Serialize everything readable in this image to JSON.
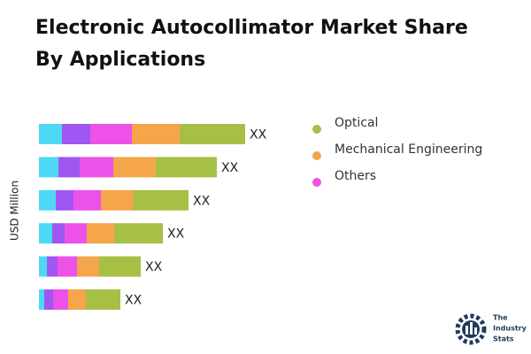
{
  "chart_data": {
    "type": "stacked-bar-horizontal",
    "title": "Electronic Autocollimator Market Share By Applications",
    "y_label": "USD Million",
    "categories": [
      null,
      null,
      null,
      null,
      null,
      null
    ],
    "series": [
      {
        "color": "#4dd9f5",
        "values": [
          26,
          22,
          19,
          15,
          9,
          6
        ]
      },
      {
        "color": "#a056f0",
        "values": [
          32,
          24,
          20,
          14,
          12,
          10
        ]
      },
      {
        "name": "Others",
        "color": "#ec52e8",
        "values": [
          47,
          38,
          31,
          25,
          22,
          17
        ]
      },
      {
        "name": "Mechanical Engineering",
        "color": "#f5a54a",
        "values": [
          54,
          48,
          37,
          31,
          25,
          20
        ]
      },
      {
        "name": "Optical",
        "color": "#a6bf45",
        "values": [
          74,
          69,
          62,
          55,
          47,
          39
        ]
      }
    ],
    "value_labels": [
      "XX",
      "XX",
      "XX",
      "XX",
      "XX",
      "XX"
    ]
  },
  "brand": [
    "The",
    "Industry",
    "Stats"
  ]
}
